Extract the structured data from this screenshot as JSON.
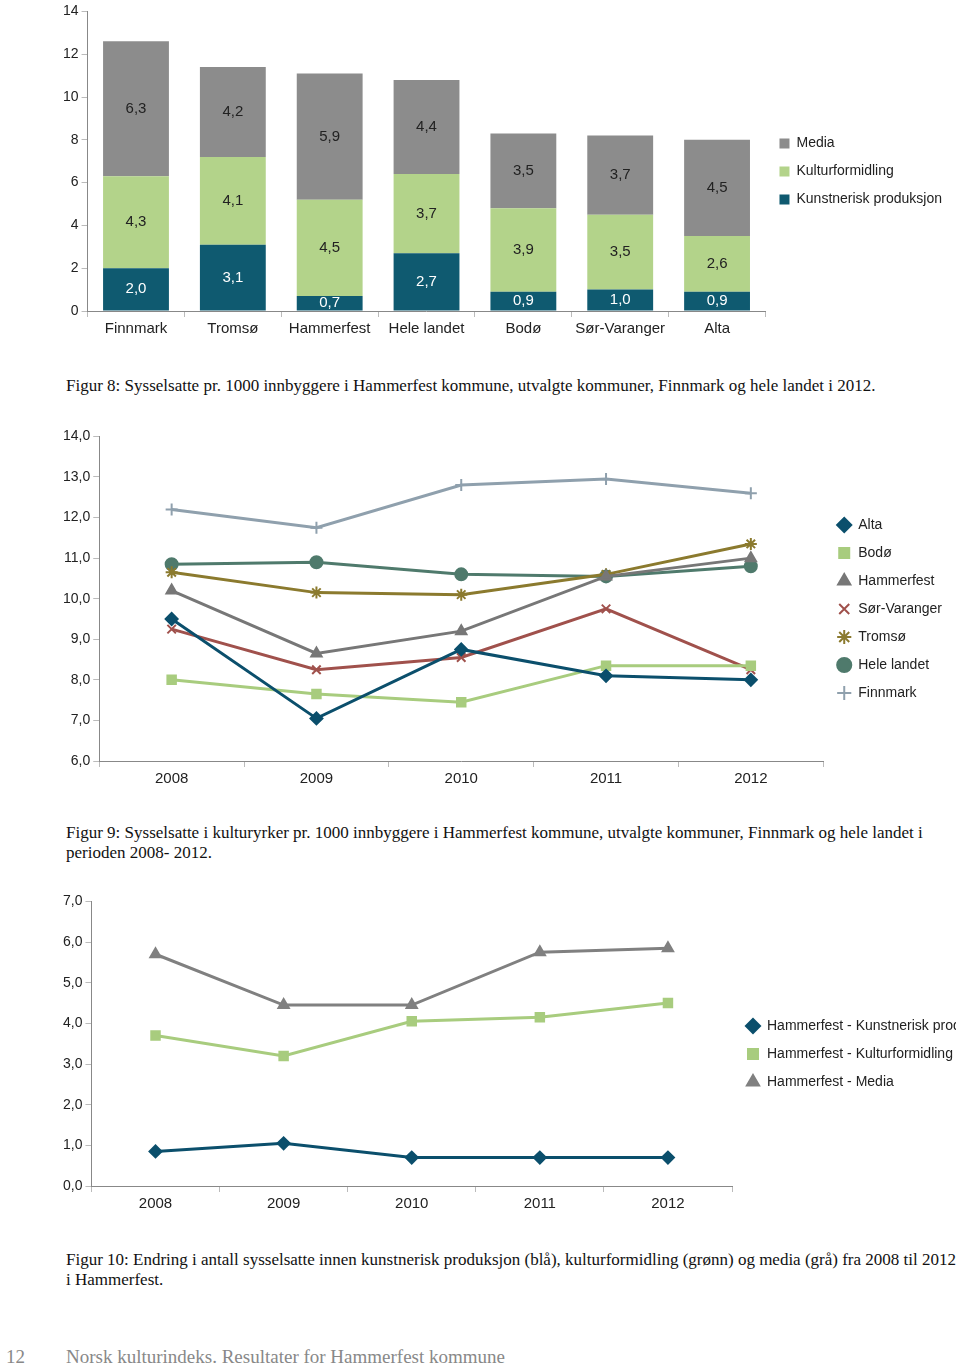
{
  "chart_data": [
    {
      "type": "bar",
      "stacked": true,
      "data_labels": true,
      "legend": "right",
      "grid": false,
      "title": "Figur 8: Sysselsatte pr. 1000 innbyggere i Hammerfest kommune, utvalgte kommuner, Finnmark og hele landet  i 2012.",
      "categories": [
        "Finnmark",
        "Tromsø",
        "Hammerfest",
        "Hele landet",
        "Bodø",
        "Sør-Varanger",
        "Alta"
      ],
      "ylim": [
        0,
        14
      ],
      "yticks": [
        0,
        2,
        4,
        6,
        8,
        10,
        12,
        14
      ],
      "series": [
        {
          "name": "Kunstnerisk produksjon",
          "color": "#0f5a70",
          "values": [
            2.0,
            3.1,
            0.7,
            2.7,
            0.9,
            1.0,
            0.9
          ],
          "value_labels": [
            "2,0",
            "3,1",
            "0,7",
            "2,7",
            "0,9",
            "1,0",
            "0,9"
          ]
        },
        {
          "name": "Kulturformidling",
          "color": "#b3d38a",
          "values": [
            4.3,
            4.1,
            4.5,
            3.7,
            3.9,
            3.5,
            2.6
          ],
          "value_labels": [
            "4,3",
            "4,1",
            "4,5",
            "3,7",
            "3,9",
            "3,5",
            "2,6"
          ]
        },
        {
          "name": "Media",
          "color": "#8c8c8c",
          "values": [
            6.3,
            4.2,
            5.9,
            4.4,
            3.5,
            3.7,
            4.5
          ],
          "value_labels": [
            "6,3",
            "4,2",
            "5,9",
            "4,4",
            "3,5",
            "3,7",
            "4,5"
          ]
        }
      ]
    },
    {
      "type": "line",
      "legend": "right",
      "grid": false,
      "title": "Figur 9: Sysselsatte i kulturyrker pr. 1000 innbyggere i Hammerfest kommune, utvalgte kommuner, Finnmark og hele landet i perioden 2008- 2012.",
      "categories": [
        "2008",
        "2009",
        "2010",
        "2011",
        "2012"
      ],
      "ylim": [
        6,
        14
      ],
      "yticks": [
        {
          "value": 6,
          "label": "6,0"
        },
        {
          "value": 7,
          "label": "7,0"
        },
        {
          "value": 8,
          "label": "8,0"
        },
        {
          "value": 9,
          "label": "9,0"
        },
        {
          "value": 10,
          "label": "10,0"
        },
        {
          "value": 11,
          "label": "11,0"
        },
        {
          "value": 12,
          "label": "12,0"
        },
        {
          "value": 13,
          "label": "13,0"
        },
        {
          "value": 14,
          "label": "14,0"
        }
      ],
      "series": [
        {
          "name": "Alta",
          "color": "#0b4f6c",
          "marker": "diamond",
          "values": [
            9.5,
            7.05,
            8.75,
            8.1,
            8.0
          ]
        },
        {
          "name": "Bodø",
          "color": "#a8cc7e",
          "marker": "square",
          "values": [
            8.0,
            7.65,
            7.45,
            8.35,
            8.35
          ]
        },
        {
          "name": "Hammerfest",
          "color": "#777777",
          "marker": "triangle",
          "values": [
            10.2,
            8.65,
            9.2,
            10.55,
            11.0
          ]
        },
        {
          "name": "Sør-Varanger",
          "color": "#a0514c",
          "marker": "x",
          "values": [
            9.25,
            8.25,
            8.55,
            9.75,
            8.25
          ]
        },
        {
          "name": "Tromsø",
          "color": "#8b7a2e",
          "marker": "star",
          "values": [
            10.65,
            10.15,
            10.1,
            10.6,
            11.35
          ]
        },
        {
          "name": "Hele landet",
          "color": "#4f7a6c",
          "marker": "circle",
          "values": [
            10.85,
            10.9,
            10.6,
            10.55,
            10.8
          ]
        },
        {
          "name": "Finnmark",
          "color": "#8fa0ad",
          "marker": "plus",
          "values": [
            12.2,
            11.75,
            12.8,
            12.95,
            12.6
          ]
        }
      ]
    },
    {
      "type": "line",
      "legend": "right",
      "grid": false,
      "title": "Figur 10: Endring i antall sysselsatte innen kunstnerisk produksjon (blå), kulturformidling (grønn) og media (grå) fra 2008 til 2012 i Hammerfest.",
      "categories": [
        "2008",
        "2009",
        "2010",
        "2011",
        "2012"
      ],
      "ylim": [
        0,
        7
      ],
      "yticks": [
        {
          "value": 0,
          "label": "0,0"
        },
        {
          "value": 1,
          "label": "1,0"
        },
        {
          "value": 2,
          "label": "2,0"
        },
        {
          "value": 3,
          "label": "3,0"
        },
        {
          "value": 4,
          "label": "4,0"
        },
        {
          "value": 5,
          "label": "5,0"
        },
        {
          "value": 6,
          "label": "6,0"
        },
        {
          "value": 7,
          "label": "7,0"
        }
      ],
      "series": [
        {
          "name": "Hammerfest - Kunstnerisk produksjon",
          "color": "#0b4f6c",
          "marker": "diamond",
          "values": [
            0.85,
            1.05,
            0.7,
            0.7,
            0.7
          ]
        },
        {
          "name": "Hammerfest - Kulturformidling",
          "color": "#a8cc7e",
          "marker": "square",
          "values": [
            3.7,
            3.2,
            4.05,
            4.15,
            4.5
          ]
        },
        {
          "name": "Hammerfest - Media",
          "color": "#808080",
          "marker": "triangle",
          "values": [
            5.7,
            4.45,
            4.45,
            5.75,
            5.85
          ]
        }
      ]
    }
  ],
  "footer": {
    "page": "12",
    "text": "Norsk kulturindeks. Resultater for Hammerfest kommune"
  }
}
